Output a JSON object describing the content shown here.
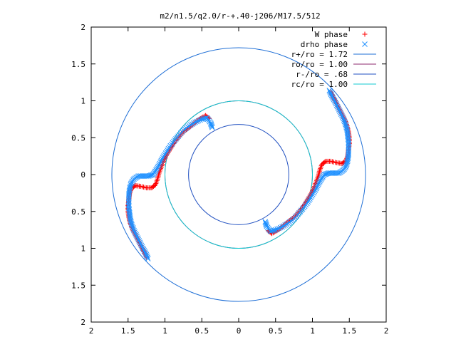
{
  "chart_data": {
    "type": "scatter",
    "title": "m2/n1.5/q2.0/r-+.40-j206/M17.5/512",
    "xlabel": "",
    "ylabel": "",
    "xlim": [
      -2,
      2
    ],
    "ylim": [
      -2,
      2
    ],
    "x_tick_values": [
      -2,
      -1.5,
      -1,
      -0.5,
      0,
      0.5,
      1,
      1.5,
      2
    ],
    "y_tick_values": [
      -2,
      -1.5,
      -1,
      -0.5,
      0,
      0.5,
      1,
      1.5,
      2
    ],
    "x_tick_labels": [
      "2",
      "1.5",
      "1",
      "0.5",
      "0",
      "0.5",
      "1",
      "1.5",
      "2"
    ],
    "y_tick_labels": [
      "2",
      "1.5",
      "1",
      "0.5",
      "0",
      "0.5",
      "1",
      "1.5",
      "2"
    ],
    "grid": false,
    "legend_position": "top-right",
    "circles": [
      {
        "name": "r+/ro = 1.72",
        "radius": 1.72,
        "color": "#1f6fd6"
      },
      {
        "name": "ro/ro = 1.00",
        "radius": 1.0,
        "color": "#8c2a6e"
      },
      {
        "name": "r-/ro = .68",
        "radius": 0.68,
        "color": "#1f4fc0"
      },
      {
        "name": "rc/ro = 1.00",
        "radius": 1.0,
        "color": "#10c8d0"
      }
    ],
    "series": [
      {
        "name": "W phase",
        "marker": "+",
        "color": "#ff0000",
        "points": [
          [
            1.25,
            1.12
          ],
          [
            1.28,
            1.05
          ],
          [
            1.32,
            0.98
          ],
          [
            1.36,
            0.9
          ],
          [
            1.4,
            0.82
          ],
          [
            1.44,
            0.74
          ],
          [
            1.47,
            0.66
          ],
          [
            1.49,
            0.58
          ],
          [
            1.5,
            0.5
          ],
          [
            1.5,
            0.42
          ],
          [
            1.49,
            0.34
          ],
          [
            1.48,
            0.26
          ],
          [
            1.45,
            0.18
          ],
          [
            1.4,
            0.15
          ],
          [
            1.33,
            0.16
          ],
          [
            1.25,
            0.18
          ],
          [
            1.18,
            0.18
          ],
          [
            1.13,
            0.14
          ],
          [
            1.1,
            0.06
          ],
          [
            1.08,
            -0.02
          ],
          [
            1.05,
            -0.1
          ],
          [
            1.02,
            -0.18
          ],
          [
            0.98,
            -0.26
          ],
          [
            0.93,
            -0.34
          ],
          [
            0.88,
            -0.42
          ],
          [
            0.82,
            -0.5
          ],
          [
            0.75,
            -0.58
          ],
          [
            0.67,
            -0.64
          ],
          [
            0.6,
            -0.7
          ],
          [
            0.52,
            -0.76
          ],
          [
            0.45,
            -0.8
          ],
          [
            0.4,
            -0.76
          ],
          [
            -1.25,
            -1.12
          ],
          [
            -1.28,
            -1.05
          ],
          [
            -1.32,
            -0.98
          ],
          [
            -1.36,
            -0.9
          ],
          [
            -1.4,
            -0.82
          ],
          [
            -1.44,
            -0.74
          ],
          [
            -1.47,
            -0.66
          ],
          [
            -1.49,
            -0.58
          ],
          [
            -1.5,
            -0.5
          ],
          [
            -1.5,
            -0.42
          ],
          [
            -1.49,
            -0.34
          ],
          [
            -1.48,
            -0.26
          ],
          [
            -1.45,
            -0.18
          ],
          [
            -1.4,
            -0.15
          ],
          [
            -1.33,
            -0.16
          ],
          [
            -1.25,
            -0.18
          ],
          [
            -1.18,
            -0.18
          ],
          [
            -1.13,
            -0.14
          ],
          [
            -1.1,
            -0.06
          ],
          [
            -1.08,
            0.02
          ],
          [
            -1.05,
            0.1
          ],
          [
            -1.02,
            0.18
          ],
          [
            -0.98,
            0.26
          ],
          [
            -0.93,
            0.34
          ],
          [
            -0.88,
            0.42
          ],
          [
            -0.82,
            0.5
          ],
          [
            -0.75,
            0.58
          ],
          [
            -0.67,
            0.64
          ],
          [
            -0.6,
            0.7
          ],
          [
            -0.52,
            0.76
          ],
          [
            -0.45,
            0.8
          ],
          [
            -0.4,
            0.76
          ]
        ]
      },
      {
        "name": "drho phase",
        "marker": "x",
        "color": "#1e90ff",
        "points": [
          [
            1.23,
            1.14
          ],
          [
            1.26,
            1.07
          ],
          [
            1.3,
            1.0
          ],
          [
            1.34,
            0.92
          ],
          [
            1.38,
            0.84
          ],
          [
            1.42,
            0.76
          ],
          [
            1.45,
            0.68
          ],
          [
            1.47,
            0.6
          ],
          [
            1.48,
            0.52
          ],
          [
            1.49,
            0.44
          ],
          [
            1.49,
            0.36
          ],
          [
            1.49,
            0.28
          ],
          [
            1.48,
            0.2
          ],
          [
            1.46,
            0.12
          ],
          [
            1.42,
            0.06
          ],
          [
            1.36,
            0.02
          ],
          [
            1.29,
            0.02
          ],
          [
            1.22,
            0.02
          ],
          [
            1.16,
            0.0
          ],
          [
            1.12,
            -0.06
          ],
          [
            1.08,
            -0.13
          ],
          [
            1.04,
            -0.21
          ],
          [
            0.99,
            -0.29
          ],
          [
            0.94,
            -0.37
          ],
          [
            0.88,
            -0.45
          ],
          [
            0.82,
            -0.52
          ],
          [
            0.75,
            -0.6
          ],
          [
            0.67,
            -0.66
          ],
          [
            0.59,
            -0.71
          ],
          [
            0.5,
            -0.75
          ],
          [
            0.43,
            -0.77
          ],
          [
            0.38,
            -0.7
          ],
          [
            0.36,
            -0.64
          ],
          [
            -1.23,
            -1.14
          ],
          [
            -1.26,
            -1.07
          ],
          [
            -1.3,
            -1.0
          ],
          [
            -1.34,
            -0.92
          ],
          [
            -1.38,
            -0.84
          ],
          [
            -1.42,
            -0.76
          ],
          [
            -1.45,
            -0.68
          ],
          [
            -1.47,
            -0.6
          ],
          [
            -1.48,
            -0.52
          ],
          [
            -1.49,
            -0.44
          ],
          [
            -1.49,
            -0.36
          ],
          [
            -1.49,
            -0.28
          ],
          [
            -1.48,
            -0.2
          ],
          [
            -1.46,
            -0.12
          ],
          [
            -1.42,
            -0.06
          ],
          [
            -1.36,
            -0.02
          ],
          [
            -1.29,
            -0.02
          ],
          [
            -1.22,
            -0.02
          ],
          [
            -1.16,
            0.0
          ],
          [
            -1.12,
            0.06
          ],
          [
            -1.08,
            0.13
          ],
          [
            -1.04,
            0.21
          ],
          [
            -0.99,
            0.29
          ],
          [
            -0.94,
            0.37
          ],
          [
            -0.88,
            0.45
          ],
          [
            -0.82,
            0.52
          ],
          [
            -0.75,
            0.6
          ],
          [
            -0.67,
            0.66
          ],
          [
            -0.59,
            0.71
          ],
          [
            -0.5,
            0.75
          ],
          [
            -0.43,
            0.77
          ],
          [
            -0.38,
            0.7
          ],
          [
            -0.36,
            0.64
          ]
        ]
      }
    ]
  }
}
